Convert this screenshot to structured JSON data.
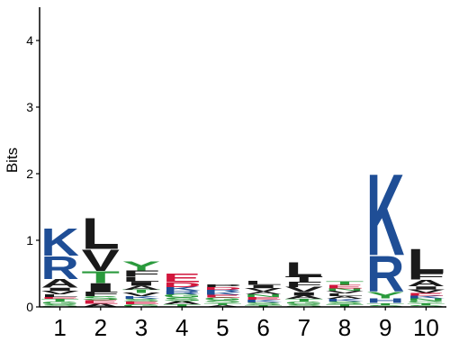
{
  "chart_data": {
    "type": "sequence-logo",
    "title": "",
    "xlabel": "",
    "ylabel": "Bits",
    "ylim": [
      0,
      4.5
    ],
    "yticks": [
      "0",
      "1",
      "2",
      "3",
      "4"
    ],
    "categories": [
      "1",
      "2",
      "3",
      "4",
      "5",
      "6",
      "7",
      "8",
      "9",
      "10"
    ],
    "colors": {
      "hydrophobic": "#1a1a1a",
      "basic": "#1f4e96",
      "polar": "#2a9a3c",
      "acidic": "#d2163c",
      "neutral": "#7d2b8c"
    },
    "positions": [
      {
        "position": "1",
        "total_bits": 1.39,
        "stack": [
          {
            "letter": "S",
            "bits": 0.04,
            "color": "#2a9a3c"
          },
          {
            "letter": "G",
            "bits": 0.04,
            "color": "#2a9a3c"
          },
          {
            "letter": "T",
            "bits": 0.04,
            "color": "#2a9a3c"
          },
          {
            "letter": "E",
            "bits": 0.03,
            "color": "#d2163c"
          },
          {
            "letter": "L",
            "bits": 0.04,
            "color": "#1a1a1a"
          },
          {
            "letter": "V",
            "bits": 0.05,
            "color": "#1a1a1a"
          },
          {
            "letter": "I",
            "bits": 0.05,
            "color": "#1a1a1a"
          },
          {
            "letter": "A",
            "bits": 0.13,
            "color": "#1a1a1a"
          },
          {
            "letter": "R",
            "bits": 0.35,
            "color": "#1f4e96"
          },
          {
            "letter": "K",
            "bits": 0.42,
            "color": "#1f4e96"
          }
        ]
      },
      {
        "position": "2",
        "total_bits": 1.57,
        "stack": [
          {
            "letter": "A",
            "bits": 0.05,
            "color": "#1a1a1a"
          },
          {
            "letter": "E",
            "bits": 0.05,
            "color": "#d2163c"
          },
          {
            "letter": "S",
            "bits": 0.06,
            "color": "#2a9a3c"
          },
          {
            "letter": "F",
            "bits": 0.07,
            "color": "#1a1a1a"
          },
          {
            "letter": "I",
            "bits": 0.13,
            "color": "#1a1a1a"
          },
          {
            "letter": "T",
            "bits": 0.18,
            "color": "#2a9a3c"
          },
          {
            "letter": "V",
            "bits": 0.33,
            "color": "#1a1a1a"
          },
          {
            "letter": "L",
            "bits": 0.48,
            "color": "#1a1a1a"
          }
        ]
      },
      {
        "position": "3",
        "total_bits": 0.85,
        "stack": [
          {
            "letter": "G",
            "bits": 0.04,
            "color": "#2a9a3c"
          },
          {
            "letter": "E",
            "bits": 0.04,
            "color": "#d2163c"
          },
          {
            "letter": "S",
            "bits": 0.04,
            "color": "#2a9a3c"
          },
          {
            "letter": "K",
            "bits": 0.04,
            "color": "#1f4e96"
          },
          {
            "letter": "V",
            "bits": 0.05,
            "color": "#1a1a1a"
          },
          {
            "letter": "T",
            "bits": 0.05,
            "color": "#2a9a3c"
          },
          {
            "letter": "A",
            "bits": 0.06,
            "color": "#1a1a1a"
          },
          {
            "letter": "I",
            "bits": 0.06,
            "color": "#1a1a1a"
          },
          {
            "letter": "L",
            "bits": 0.07,
            "color": "#1a1a1a"
          },
          {
            "letter": "F",
            "bits": 0.1,
            "color": "#1a1a1a"
          },
          {
            "letter": "Y",
            "bits": 0.14,
            "color": "#2a9a3c"
          }
        ]
      },
      {
        "position": "4",
        "total_bits": 0.7,
        "stack": [
          {
            "letter": "T",
            "bits": 0.04,
            "color": "#2a9a3c"
          },
          {
            "letter": "A",
            "bits": 0.05,
            "color": "#1a1a1a"
          },
          {
            "letter": "S",
            "bits": 0.05,
            "color": "#2a9a3c"
          },
          {
            "letter": "G",
            "bits": 0.05,
            "color": "#2a9a3c"
          },
          {
            "letter": "R",
            "bits": 0.05,
            "color": "#1f4e96"
          },
          {
            "letter": "K",
            "bits": 0.06,
            "color": "#1f4e96"
          },
          {
            "letter": "D",
            "bits": 0.07,
            "color": "#d2163c"
          },
          {
            "letter": "E",
            "bits": 0.13,
            "color": "#d2163c"
          }
        ]
      },
      {
        "position": "5",
        "total_bits": 0.52,
        "stack": [
          {
            "letter": "A",
            "bits": 0.03,
            "color": "#1a1a1a"
          },
          {
            "letter": "T",
            "bits": 0.03,
            "color": "#2a9a3c"
          },
          {
            "letter": "S",
            "bits": 0.04,
            "color": "#2a9a3c"
          },
          {
            "letter": "G",
            "bits": 0.04,
            "color": "#2a9a3c"
          },
          {
            "letter": "E",
            "bits": 0.04,
            "color": "#d2163c"
          },
          {
            "letter": "K",
            "bits": 0.04,
            "color": "#1f4e96"
          },
          {
            "letter": "R",
            "bits": 0.04,
            "color": "#1f4e96"
          },
          {
            "letter": "D",
            "bits": 0.04,
            "color": "#d2163c"
          },
          {
            "letter": "P",
            "bits": 0.04,
            "color": "#1a1a1a"
          }
        ]
      },
      {
        "position": "6",
        "total_bits": 0.6,
        "stack": [
          {
            "letter": "T",
            "bits": 0.03,
            "color": "#2a9a3c"
          },
          {
            "letter": "S",
            "bits": 0.04,
            "color": "#2a9a3c"
          },
          {
            "letter": "K",
            "bits": 0.04,
            "color": "#1f4e96"
          },
          {
            "letter": "E",
            "bits": 0.04,
            "color": "#d2163c"
          },
          {
            "letter": "N",
            "bits": 0.04,
            "color": "#2a9a3c"
          },
          {
            "letter": "A",
            "bits": 0.04,
            "color": "#1a1a1a"
          },
          {
            "letter": "V",
            "bits": 0.05,
            "color": "#1a1a1a"
          },
          {
            "letter": "I",
            "bits": 0.05,
            "color": "#1a1a1a"
          },
          {
            "letter": "L",
            "bits": 0.06,
            "color": "#1a1a1a"
          }
        ]
      },
      {
        "position": "7",
        "total_bits": 0.95,
        "stack": [
          {
            "letter": "S",
            "bits": 0.04,
            "color": "#2a9a3c"
          },
          {
            "letter": "G",
            "bits": 0.04,
            "color": "#2a9a3c"
          },
          {
            "letter": "T",
            "bits": 0.04,
            "color": "#2a9a3c"
          },
          {
            "letter": "A",
            "bits": 0.05,
            "color": "#1a1a1a"
          },
          {
            "letter": "I",
            "bits": 0.05,
            "color": "#1a1a1a"
          },
          {
            "letter": "V",
            "bits": 0.08,
            "color": "#1a1a1a"
          },
          {
            "letter": "F",
            "bits": 0.08,
            "color": "#1a1a1a"
          },
          {
            "letter": "T",
            "bits": 0.08,
            "color": "#1a1a1a"
          },
          {
            "letter": "L",
            "bits": 0.22,
            "color": "#1a1a1a"
          }
        ]
      },
      {
        "position": "8",
        "total_bits": 0.7,
        "stack": [
          {
            "letter": "T",
            "bits": 0.04,
            "color": "#2a9a3c"
          },
          {
            "letter": "S",
            "bits": 0.04,
            "color": "#2a9a3c"
          },
          {
            "letter": "K",
            "bits": 0.04,
            "color": "#1f4e96"
          },
          {
            "letter": "A",
            "bits": 0.04,
            "color": "#1a1a1a"
          },
          {
            "letter": "L",
            "bits": 0.04,
            "color": "#1a1a1a"
          },
          {
            "letter": "V",
            "bits": 0.04,
            "color": "#1a1a1a"
          },
          {
            "letter": "N",
            "bits": 0.04,
            "color": "#2a9a3c"
          },
          {
            "letter": "E",
            "bits": 0.05,
            "color": "#d2163c"
          },
          {
            "letter": "T",
            "bits": 0.05,
            "color": "#2a9a3c"
          }
        ]
      },
      {
        "position": "9",
        "total_bits": 2.48,
        "stack": [
          {
            "letter": "S",
            "bits": 0.03,
            "color": "#2a9a3c"
          },
          {
            "letter": "T",
            "bits": 0.03,
            "color": "#2a9a3c"
          },
          {
            "letter": "H",
            "bits": 0.07,
            "color": "#1f4e96"
          },
          {
            "letter": "Y",
            "bits": 0.1,
            "color": "#2a9a3c"
          },
          {
            "letter": "R",
            "bits": 0.55,
            "color": "#1f4e96"
          },
          {
            "letter": "K",
            "bits": 1.26,
            "color": "#1f4e96"
          }
        ]
      },
      {
        "position": "10",
        "total_bits": 1.25,
        "stack": [
          {
            "letter": "S",
            "bits": 0.03,
            "color": "#2a9a3c"
          },
          {
            "letter": "T",
            "bits": 0.03,
            "color": "#2a9a3c"
          },
          {
            "letter": "G",
            "bits": 0.03,
            "color": "#2a9a3c"
          },
          {
            "letter": "N",
            "bits": 0.04,
            "color": "#2a9a3c"
          },
          {
            "letter": "K",
            "bits": 0.04,
            "color": "#1f4e96"
          },
          {
            "letter": "E",
            "bits": 0.04,
            "color": "#d2163c"
          },
          {
            "letter": "V",
            "bits": 0.05,
            "color": "#1a1a1a"
          },
          {
            "letter": "I",
            "bits": 0.05,
            "color": "#1a1a1a"
          },
          {
            "letter": "A",
            "bits": 0.1,
            "color": "#1a1a1a"
          },
          {
            "letter": "F",
            "bits": 0.1,
            "color": "#1a1a1a"
          },
          {
            "letter": "L",
            "bits": 0.38,
            "color": "#1a1a1a"
          }
        ]
      }
    ]
  }
}
